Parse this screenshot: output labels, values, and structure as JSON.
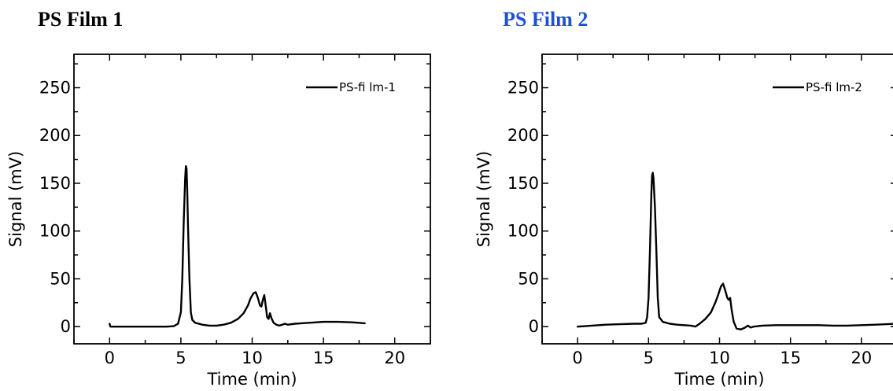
{
  "panels": [
    {
      "title": "PS Film 1",
      "title_color": "#000000",
      "chart_data": {
        "type": "line",
        "xlabel": "Time (min)",
        "ylabel": "Signal (mV)",
        "xlim": [
          -2.5,
          22.5
        ],
        "ylim": [
          -18,
          285
        ],
        "xticks": [
          0,
          5,
          10,
          15,
          20
        ],
        "yticks": [
          0,
          50,
          100,
          150,
          200,
          250
        ],
        "grid": false,
        "legend_position": "top-right",
        "series": [
          {
            "name": "PS-fi lm-1",
            "color": "#000000",
            "x": [
              0,
              0.05,
              1,
              2,
              3,
              4,
              4.5,
              4.8,
              5.0,
              5.1,
              5.2,
              5.3,
              5.35,
              5.4,
              5.45,
              5.5,
              5.6,
              5.7,
              5.8,
              6.0,
              6.5,
              7.0,
              7.5,
              8.0,
              8.5,
              9.0,
              9.4,
              9.7,
              9.9,
              10.1,
              10.25,
              10.4,
              10.55,
              10.65,
              10.75,
              10.85,
              10.95,
              11.05,
              11.15,
              11.25,
              11.35,
              11.5,
              11.7,
              11.9,
              12.1,
              12.3,
              12.5,
              13,
              14,
              15,
              16,
              17,
              17.9
            ],
            "y": [
              3,
              0,
              0,
              0,
              0,
              0,
              0.5,
              3,
              15,
              50,
              110,
              155,
              168,
              165,
              140,
              105,
              50,
              15,
              7,
              4,
              2,
              1,
              1,
              2,
              4,
              8,
              14,
              22,
              30,
              35,
              36,
              30,
              22,
              21,
              28,
              33,
              22,
              10,
              8,
              14,
              9,
              4,
              2,
              1,
              2,
              3,
              2,
              3,
              4,
              5,
              5,
              4.5,
              3.5
            ]
          }
        ]
      }
    },
    {
      "title": "PS Film 2",
      "title_color": "#1f4fd8",
      "chart_data": {
        "type": "line",
        "xlabel": "Time (min)",
        "ylabel": "Signal (mV)",
        "xlim": [
          -2.5,
          22.5
        ],
        "ylim": [
          -18,
          285
        ],
        "xticks": [
          0,
          5,
          10,
          15,
          20
        ],
        "yticks": [
          0,
          50,
          100,
          150,
          200,
          250
        ],
        "grid": false,
        "legend_position": "top-right",
        "series": [
          {
            "name": "PS-fi lm-2",
            "color": "#000000",
            "x": [
              0,
              1,
              2,
              3,
              4,
              4.5,
              4.8,
              4.9,
              5.0,
              5.1,
              5.2,
              5.25,
              5.3,
              5.35,
              5.45,
              5.55,
              5.65,
              5.75,
              6.0,
              6.5,
              7.0,
              7.5,
              8.0,
              8.3,
              8.6,
              9.0,
              9.4,
              9.7,
              9.9,
              10.1,
              10.25,
              10.4,
              10.55,
              10.65,
              10.75,
              10.85,
              11.0,
              11.2,
              11.5,
              11.8,
              12.0,
              12.2,
              12.4,
              13,
              14,
              15,
              16,
              17,
              18,
              19,
              20,
              21,
              22.5
            ],
            "y": [
              0,
              1,
              2,
              2.5,
              3,
              3,
              4,
              10,
              30,
              80,
              140,
              158,
              161,
              155,
              125,
              80,
              30,
              10,
              5,
              3,
              2,
              1.5,
              1,
              0,
              3,
              8,
              15,
              25,
              33,
              42,
              45,
              38,
              30,
              28,
              30,
              18,
              5,
              -2,
              -3,
              -1,
              1,
              -1,
              0,
              1,
              1.5,
              1.5,
              1.5,
              1.5,
              1,
              1,
              1.5,
              2,
              3
            ]
          }
        ]
      }
    }
  ]
}
